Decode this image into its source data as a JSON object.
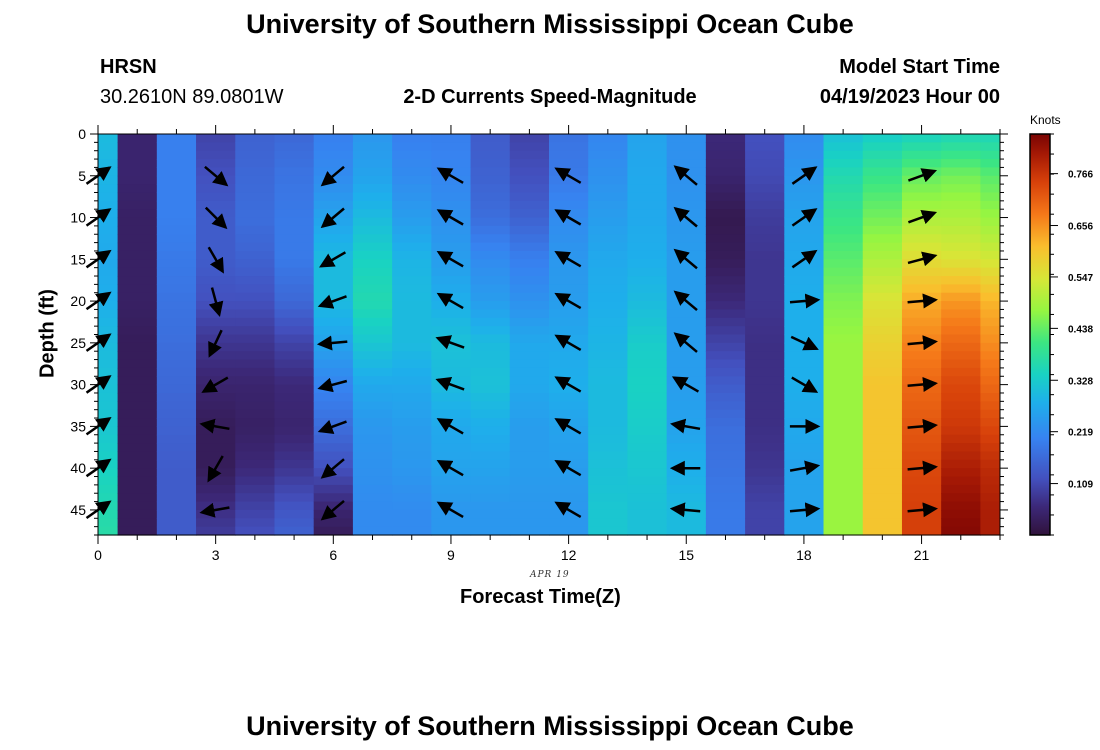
{
  "header": {
    "title": "University of Southern Mississippi Ocean Cube",
    "station": "HRSN",
    "coords": "30.2610N  89.0801W",
    "plot_title": "2-D Currents Speed-Magnitude",
    "model_start_label": "Model Start Time",
    "model_start_value": "04/19/2023 Hour 00"
  },
  "footer": {
    "title": "University of Southern Mississippi Ocean Cube"
  },
  "chart_data": {
    "type": "heatmap",
    "title": "2-D Currents Speed-Magnitude",
    "xlabel": "Forecast Time(Z)",
    "ylabel": "Depth (ft)",
    "x_date_label": "APR 19",
    "xlim": [
      0,
      23
    ],
    "ylim": [
      48,
      0
    ],
    "x_ticks": [
      0,
      3,
      6,
      9,
      12,
      15,
      18,
      21
    ],
    "x_tick_labels": [
      "0",
      "3",
      "6",
      "9",
      "12",
      "15",
      "18",
      "21"
    ],
    "y_ticks": [
      0,
      5,
      10,
      15,
      20,
      25,
      30,
      35,
      40,
      45
    ],
    "y_tick_labels": [
      "0",
      "5",
      "10",
      "15",
      "20",
      "25",
      "30",
      "35",
      "40",
      "45"
    ],
    "colorbar": {
      "label": "Knots",
      "range": [
        0,
        0.85
      ],
      "ticks": [
        0.109,
        0.219,
        0.328,
        0.438,
        0.547,
        0.656,
        0.766
      ],
      "tick_labels": [
        "0.109",
        "0.219",
        "0.328",
        "0.438",
        "0.547",
        "0.656",
        "0.766"
      ]
    },
    "speed_profiles_by_hour": {
      "hours": [
        0,
        1,
        2,
        3,
        4,
        5,
        6,
        7,
        8,
        9,
        10,
        11,
        12,
        13,
        14,
        15,
        16,
        17,
        18,
        19,
        20,
        21,
        22,
        23
      ],
      "depths": [
        0,
        5,
        10,
        15,
        20,
        25,
        30,
        35,
        40,
        45,
        48
      ],
      "values": [
        [
          0.3,
          0.29,
          0.28,
          0.27,
          0.28,
          0.3,
          0.31,
          0.32,
          0.34,
          0.36,
          0.37
        ],
        [
          0.05,
          0.05,
          0.04,
          0.04,
          0.04,
          0.03,
          0.03,
          0.03,
          0.03,
          0.03,
          0.03
        ],
        [
          0.2,
          0.2,
          0.2,
          0.19,
          0.18,
          0.17,
          0.16,
          0.15,
          0.14,
          0.14,
          0.14
        ],
        [
          0.1,
          0.12,
          0.14,
          0.14,
          0.12,
          0.08,
          0.05,
          0.03,
          0.03,
          0.07,
          0.09
        ],
        [
          0.15,
          0.16,
          0.17,
          0.15,
          0.12,
          0.08,
          0.05,
          0.04,
          0.06,
          0.1,
          0.12
        ],
        [
          0.16,
          0.18,
          0.19,
          0.19,
          0.16,
          0.1,
          0.06,
          0.05,
          0.08,
          0.13,
          0.15
        ],
        [
          0.2,
          0.22,
          0.26,
          0.3,
          0.3,
          0.26,
          0.21,
          0.17,
          0.12,
          0.05,
          0.03
        ],
        [
          0.24,
          0.26,
          0.3,
          0.34,
          0.36,
          0.32,
          0.27,
          0.24,
          0.23,
          0.22,
          0.22
        ],
        [
          0.2,
          0.22,
          0.25,
          0.29,
          0.3,
          0.3,
          0.27,
          0.25,
          0.24,
          0.22,
          0.22
        ],
        [
          0.2,
          0.21,
          0.23,
          0.25,
          0.28,
          0.31,
          0.3,
          0.27,
          0.26,
          0.24,
          0.24
        ],
        [
          0.14,
          0.15,
          0.17,
          0.22,
          0.25,
          0.3,
          0.31,
          0.28,
          0.26,
          0.24,
          0.24
        ],
        [
          0.1,
          0.12,
          0.15,
          0.2,
          0.23,
          0.27,
          0.27,
          0.25,
          0.25,
          0.24,
          0.24
        ],
        [
          0.18,
          0.19,
          0.22,
          0.24,
          0.25,
          0.27,
          0.28,
          0.26,
          0.25,
          0.24,
          0.24
        ],
        [
          0.21,
          0.23,
          0.25,
          0.27,
          0.28,
          0.29,
          0.3,
          0.3,
          0.31,
          0.32,
          0.32
        ],
        [
          0.26,
          0.27,
          0.27,
          0.28,
          0.3,
          0.33,
          0.34,
          0.33,
          0.32,
          0.31,
          0.31
        ],
        [
          0.23,
          0.23,
          0.24,
          0.25,
          0.25,
          0.25,
          0.25,
          0.26,
          0.28,
          0.3,
          0.3
        ],
        [
          0.06,
          0.05,
          0.02,
          0.03,
          0.06,
          0.1,
          0.14,
          0.17,
          0.18,
          0.19,
          0.19
        ],
        [
          0.12,
          0.11,
          0.09,
          0.08,
          0.08,
          0.07,
          0.07,
          0.07,
          0.08,
          0.1,
          0.1
        ],
        [
          0.22,
          0.24,
          0.26,
          0.27,
          0.28,
          0.28,
          0.28,
          0.27,
          0.26,
          0.26,
          0.26
        ],
        [
          0.31,
          0.36,
          0.4,
          0.43,
          0.46,
          0.48,
          0.48,
          0.48,
          0.48,
          0.48,
          0.48
        ],
        [
          0.33,
          0.4,
          0.45,
          0.5,
          0.55,
          0.58,
          0.6,
          0.6,
          0.6,
          0.6,
          0.6
        ],
        [
          0.34,
          0.44,
          0.5,
          0.56,
          0.63,
          0.67,
          0.7,
          0.72,
          0.74,
          0.75,
          0.75
        ],
        [
          0.35,
          0.45,
          0.5,
          0.55,
          0.65,
          0.7,
          0.74,
          0.76,
          0.8,
          0.83,
          0.84
        ],
        [
          0.35,
          0.43,
          0.48,
          0.54,
          0.62,
          0.66,
          0.7,
          0.74,
          0.78,
          0.8,
          0.8
        ]
      ]
    },
    "vector_times": [
      0,
      3,
      6,
      9,
      12,
      15,
      18,
      21
    ],
    "vector_depths": [
      5,
      10,
      15,
      20,
      25,
      30,
      35,
      40,
      45
    ],
    "vector_directions_deg": [
      [
        35,
        35,
        35,
        35,
        35,
        35,
        35,
        35,
        35
      ],
      [
        -40,
        -45,
        -60,
        -75,
        -115,
        -150,
        -190,
        -120,
        -170
      ],
      [
        -140,
        -140,
        -150,
        -160,
        -175,
        -165,
        -160,
        -140,
        -140
      ],
      [
        150,
        150,
        150,
        150,
        160,
        160,
        150,
        150,
        150
      ],
      [
        150,
        150,
        150,
        150,
        150,
        150,
        150,
        150,
        150
      ],
      [
        140,
        140,
        140,
        140,
        140,
        150,
        170,
        180,
        175
      ],
      [
        35,
        35,
        35,
        5,
        -25,
        -30,
        0,
        10,
        5
      ],
      [
        20,
        20,
        15,
        5,
        5,
        5,
        5,
        5,
        5
      ]
    ]
  }
}
